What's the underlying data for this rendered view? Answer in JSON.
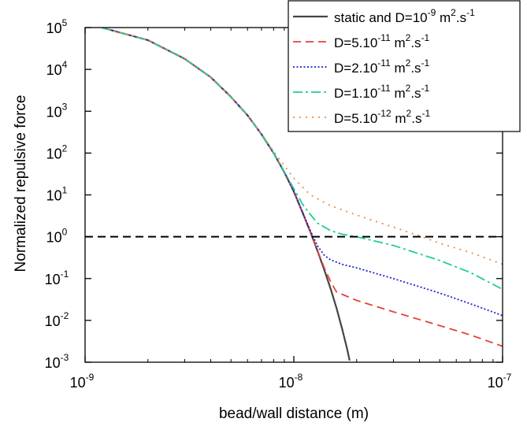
{
  "chart_data": {
    "type": "line",
    "xlabel": "bead/wall distance (m)",
    "ylabel": "Normalized repulsive force",
    "xscale": "log",
    "yscale": "log",
    "xlim": [
      1e-09,
      1e-07
    ],
    "ylim": [
      0.001,
      100000
    ],
    "x_ticks": [
      {
        "value": 1e-09,
        "base": "10",
        "exp": "-9"
      },
      {
        "value": 1e-08,
        "base": "10",
        "exp": "-8"
      },
      {
        "value": 1e-07,
        "base": "10",
        "exp": "-7"
      }
    ],
    "y_ticks": [
      {
        "value": 100000,
        "base": "10",
        "exp": "5"
      },
      {
        "value": 10000,
        "base": "10",
        "exp": "4"
      },
      {
        "value": 1000,
        "base": "10",
        "exp": "3"
      },
      {
        "value": 100,
        "base": "10",
        "exp": "2"
      },
      {
        "value": 10,
        "base": "10",
        "exp": "1"
      },
      {
        "value": 1,
        "base": "10",
        "exp": "0"
      },
      {
        "value": 0.1,
        "base": "10",
        "exp": "-1"
      },
      {
        "value": 0.01,
        "base": "10",
        "exp": "-2"
      },
      {
        "value": 0.001,
        "base": "10",
        "exp": "-3"
      }
    ],
    "reference_line": {
      "y": 1,
      "color": "#000000",
      "dash": "10,6"
    },
    "legend_position": "top-right",
    "series": [
      {
        "legend": {
          "pre": "static and D=10",
          "exp": "-9",
          "mid": " m",
          "exp2": "2",
          "post": ".s",
          "exp3": "-1"
        },
        "color": "#444444",
        "dash": "",
        "x": [
          1.2e-09,
          2e-09,
          3e-09,
          4e-09,
          5e-09,
          6e-09,
          7e-09,
          8e-09,
          9e-09,
          1e-08,
          1.1e-08,
          1.2e-08,
          1.3e-08,
          1.4e-08,
          1.5e-08,
          1.6e-08,
          1.7e-08,
          1.8e-08,
          1.85e-08
        ],
        "y": [
          100000,
          50000,
          18000,
          6500,
          2200,
          800,
          280,
          100,
          35,
          12,
          3.8,
          1.3,
          0.45,
          0.16,
          0.057,
          0.02,
          0.0065,
          0.0021,
          0.0011
        ]
      },
      {
        "legend": {
          "pre": "D=5.10",
          "exp": "-11",
          "mid": " m",
          "exp2": "2",
          "post": ".s",
          "exp3": "-1"
        },
        "color": "#e8403a",
        "dash": "10,6",
        "x": [
          1.2e-09,
          2e-09,
          3e-09,
          4e-09,
          5e-09,
          6e-09,
          7e-09,
          8e-09,
          9e-09,
          1e-08,
          1.1e-08,
          1.2e-08,
          1.3e-08,
          1.4e-08,
          1.5e-08,
          1.6e-08,
          2e-08,
          3e-08,
          5e-08,
          7e-08,
          1e-07
        ],
        "y": [
          100000,
          50000,
          18000,
          6500,
          2200,
          800,
          280,
          100,
          35,
          12,
          3.8,
          1.3,
          0.46,
          0.18,
          0.085,
          0.048,
          0.03,
          0.016,
          0.0075,
          0.0045,
          0.0024
        ]
      },
      {
        "legend": {
          "pre": "D=2.10",
          "exp": "-11",
          "mid": " m",
          "exp2": "2",
          "post": ".s",
          "exp3": "-1"
        },
        "color": "#1f1fd6",
        "dash": "2,2.5",
        "x": [
          1.2e-09,
          2e-09,
          3e-09,
          4e-09,
          5e-09,
          6e-09,
          7e-09,
          8e-09,
          9e-09,
          1e-08,
          1.1e-08,
          1.2e-08,
          1.3e-08,
          1.4e-08,
          1.5e-08,
          1.7e-08,
          2e-08,
          3e-08,
          5e-08,
          7e-08,
          1e-07
        ],
        "y": [
          100000,
          50000,
          18000,
          6500,
          2200,
          800,
          280,
          100,
          35,
          12,
          3.9,
          1.4,
          0.6,
          0.36,
          0.28,
          0.22,
          0.18,
          0.1,
          0.045,
          0.025,
          0.013
        ]
      },
      {
        "legend": {
          "pre": "D=1.10",
          "exp": "-11",
          "mid": " m",
          "exp2": "2",
          "post": ".s",
          "exp3": "-1"
        },
        "color": "#1ecc9a",
        "dash": "12,4,3,4",
        "x": [
          1.2e-09,
          2e-09,
          3e-09,
          4e-09,
          5e-09,
          6e-09,
          7e-09,
          8e-09,
          9e-09,
          1e-08,
          1.1e-08,
          1.2e-08,
          1.3e-08,
          1.5e-08,
          1.7e-08,
          2e-08,
          3e-08,
          5e-08,
          7e-08,
          1e-07
        ],
        "y": [
          100000,
          50000,
          18000,
          6500,
          2200,
          800,
          280,
          100,
          36,
          14,
          6,
          3.4,
          2.1,
          1.4,
          1.15,
          1.0,
          0.62,
          0.27,
          0.14,
          0.055
        ]
      },
      {
        "legend": {
          "pre": "D=5.10",
          "exp": "-12",
          "mid": " m",
          "exp2": "2",
          "post": ".s",
          "exp3": "-1"
        },
        "color": "#f08a3c",
        "dash": "2,6",
        "x": [
          1.2e-09,
          2e-09,
          3e-09,
          4e-09,
          5e-09,
          6e-09,
          7e-09,
          8e-09,
          9e-09,
          1e-08,
          1.2e-08,
          1.5e-08,
          2e-08,
          3e-08,
          4e-08,
          5e-08,
          7e-08,
          1e-07
        ],
        "y": [
          100000,
          50000,
          18000,
          6500,
          2200,
          800,
          290,
          110,
          50,
          25,
          10,
          5.5,
          3.3,
          1.7,
          1.05,
          0.7,
          0.42,
          0.22
        ]
      }
    ]
  }
}
